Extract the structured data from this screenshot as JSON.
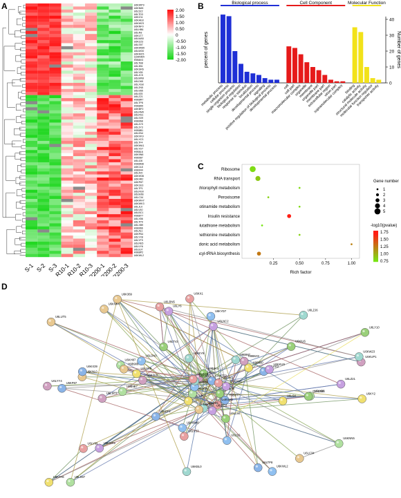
{
  "panels": {
    "a": "A",
    "b": "B",
    "c": "C",
    "d": "D"
  },
  "heatmap": {
    "samples": [
      "S-1",
      "S-2",
      "S-3",
      "R10-1",
      "R10-2",
      "R10-3",
      "R200-1",
      "R200-2",
      "R200-3"
    ],
    "genes": [
      "U6KWP9",
      "U6KN65",
      "U6L5Z2",
      "U6LTD3",
      "U6KZ11",
      "U6KAE8",
      "U6KW23",
      "U6KNF0",
      "U6LHB6",
      "U6L4I8",
      "U6KLT7",
      "U6LWA5",
      "U6KZZ3",
      "U6LS97",
      "U6KWM0",
      "U6LWG0",
      "U6KMC5",
      "Q3HNM4",
      "H9B8V3",
      "U6LTB8",
      "U6L3B1",
      "U6KSR6",
      "U6LY65",
      "U6LJC5",
      "U6LWN9",
      "U6LD65",
      "U6LXG8",
      "U6L2N5",
      "U6LVB5",
      "U6L925",
      "U6LZ21",
      "H9B8R7",
      "U6LTP8",
      "H9B8A9",
      "U6KBF0",
      "U6LRM0",
      "U6LRS1",
      "U6LSX9",
      "H9B968",
      "U6L4Y9",
      "U6L3Y3",
      "H9B8B1",
      "U6L0N4",
      "U6KVK9",
      "U6LXC3",
      "U6LTF4",
      "U6KWA1",
      "U6LYD7",
      "H9B8L6",
      "U6K9N6",
      "H9B987",
      "U6L4J6",
      "H9B6M8",
      "U6KJL8",
      "H9B944",
      "U6L420",
      "U6KW36",
      "U6K4R2",
      "U6KP87",
      "U6K3U3",
      "U6LTP1",
      "U6LRG0",
      "U6LWJB",
      "U6LC34",
      "U6KWH7",
      "U6KWK3",
      "U6LJL0",
      "U6LV40",
      "U6LBC1",
      "H9B8Y7",
      "U6LX56",
      "U6LTP9",
      "U6LXB9",
      "H9B966",
      "U6LA11",
      "U6KP64",
      "U6LYX8",
      "U6LYF9",
      "U6LRE5",
      "U6LVY6",
      "U6LBJ7",
      "H9B8P2",
      "U6KWL2"
    ],
    "legend": [
      "2.00",
      "1.50",
      "1.00",
      "0.50",
      "0",
      "-0.50",
      "-1.00",
      "-1.50",
      "-2.00"
    ]
  },
  "chart_data": [
    {
      "type": "bar",
      "ylabel": "percent of genes",
      "y2label": "Number of genes",
      "groups": [
        {
          "name": "Biological process",
          "color": "#1f2fd6",
          "categories": [
            "metabolic process",
            "cellular process",
            "single-organism process",
            "biological regulation",
            "response to stimulus",
            "localization",
            "developmental process",
            "signaling",
            "positive regulation of biological process",
            "developmental process"
          ],
          "values": [
            43,
            42,
            20,
            12,
            7,
            6,
            5,
            3,
            2,
            2
          ]
        },
        {
          "name": "Cell Component",
          "color": "#e61a1a",
          "categories": [
            "cell",
            "cell part",
            "macromolecular complex",
            "organelle",
            "membrane",
            "organelle part",
            "membrane part",
            "extracellular region",
            "virion part",
            "supramolecular complex"
          ],
          "values": [
            23,
            22,
            18,
            13,
            10,
            8,
            5,
            2,
            1,
            1
          ]
        },
        {
          "name": "Molecular Function",
          "color": "#f2e21a",
          "categories": [
            "binding",
            "catalytic activity",
            "structural molecule activity",
            "molecular function regulator",
            "transporter activity"
          ],
          "values": [
            35,
            32,
            10,
            3,
            2
          ]
        }
      ],
      "y2lim": [
        0,
        40
      ]
    },
    {
      "type": "scatter",
      "xlabel": "Rich factor",
      "xticks": [
        "0.25",
        "0.50",
        "0.75",
        "1.00"
      ],
      "categories": [
        "Ribosome",
        "RNA transport",
        "Porphrin and chlorophyll metabolism",
        "Peroxisome",
        "Nicotinate and nicotinamide metabolism",
        "Insulin resistance",
        "Glutathione metabolism",
        "Cysteine and methionine metabolism",
        "Arachidonic acid metabolism",
        "Aminoacyl-tRNA biosynthesis"
      ],
      "points": [
        {
          "x": 0.05,
          "count": 5,
          "pvalue": 0.8
        },
        {
          "x": 0.1,
          "count": 4,
          "pvalue": 0.9
        },
        {
          "x": 0.5,
          "count": 1,
          "pvalue": 0.8
        },
        {
          "x": 0.2,
          "count": 1,
          "pvalue": 0.85
        },
        {
          "x": 0.5,
          "count": 1,
          "pvalue": 0.8
        },
        {
          "x": 0.4,
          "count": 3,
          "pvalue": 1.75
        },
        {
          "x": 0.14,
          "count": 1,
          "pvalue": 0.75
        },
        {
          "x": 0.5,
          "count": 1,
          "pvalue": 0.85
        },
        {
          "x": 1.0,
          "count": 1,
          "pvalue": 1.25
        },
        {
          "x": 0.11,
          "count": 3,
          "pvalue": 1.3
        }
      ],
      "size_legend_title": "Gene number",
      "size_legend": [
        "1",
        "2",
        "3",
        "4",
        "5"
      ],
      "color_legend_title": "-log10(pvalue)",
      "color_legend": [
        "1.75",
        "1.50",
        "1.25",
        "1.00",
        "0.75"
      ]
    }
  ],
  "network": {
    "nodes": [
      {
        "id": "U6KL96"
      },
      {
        "id": "H9B8Y7"
      },
      {
        "id": "U6KV4O"
      },
      {
        "id": "U6LTD3"
      },
      {
        "id": "U6LVB5"
      },
      {
        "id": "U6KIR0"
      },
      {
        "id": "U6KYX8"
      },
      {
        "id": "U6K9N6"
      },
      {
        "id": "U6KHL8"
      },
      {
        "id": "U6LAM1"
      },
      {
        "id": "H9B8A4"
      },
      {
        "id": "U6KTF0"
      },
      {
        "id": "U6LYK6"
      },
      {
        "id": "U6KNM1"
      },
      {
        "id": "U6KW36"
      },
      {
        "id": "U6K369"
      },
      {
        "id": "U6KPA6"
      },
      {
        "id": "U6KNN5"
      },
      {
        "id": "U6LSS"
      },
      {
        "id": "H9B8A9"
      },
      {
        "id": "U6LTV2"
      },
      {
        "id": "U6LEF2"
      },
      {
        "id": "U6LBN5"
      },
      {
        "id": "U6LNC2"
      },
      {
        "id": "U6KEY9"
      },
      {
        "id": "U6KNK4"
      },
      {
        "id": "U6KY2"
      },
      {
        "id": "U6LS97"
      },
      {
        "id": "U6KWM0"
      },
      {
        "id": "U6LSC3"
      },
      {
        "id": "U6LY10"
      },
      {
        "id": "U6LKE2"
      },
      {
        "id": "U6LVS3"
      },
      {
        "id": "U6KWF8"
      },
      {
        "id": "U6LZJ6"
      },
      {
        "id": "U6LUT5"
      },
      {
        "id": "H9B960"
      },
      {
        "id": "H9B9B7"
      },
      {
        "id": "U6KYD7"
      },
      {
        "id": "U6KUP1"
      },
      {
        "id": "U6KIU6"
      },
      {
        "id": "U6LTP8"
      },
      {
        "id": "U6LKO0"
      },
      {
        "id": "U6LZ21"
      },
      {
        "id": "U6KW23"
      },
      {
        "id": "U6LC34"
      },
      {
        "id": "U6LS4"
      },
      {
        "id": "U6LY06"
      },
      {
        "id": "U6LDN0"
      },
      {
        "id": "U6K3U3"
      },
      {
        "id": "U6LL90"
      },
      {
        "id": "U6KP87"
      },
      {
        "id": "U6KX1"
      },
      {
        "id": "U6KKU9"
      },
      {
        "id": "U6KBL0"
      },
      {
        "id": "U6KNL0"
      },
      {
        "id": "U6LSX9"
      },
      {
        "id": "U6KH87"
      },
      {
        "id": "U6KWL2"
      },
      {
        "id": "U6LYY4"
      },
      {
        "id": "Q3HNM4"
      },
      {
        "id": "U6KX39"
      },
      {
        "id": "U6LV89"
      },
      {
        "id": "U6LY6"
      },
      {
        "id": "H9B987"
      },
      {
        "id": "H9B906"
      }
    ]
  }
}
